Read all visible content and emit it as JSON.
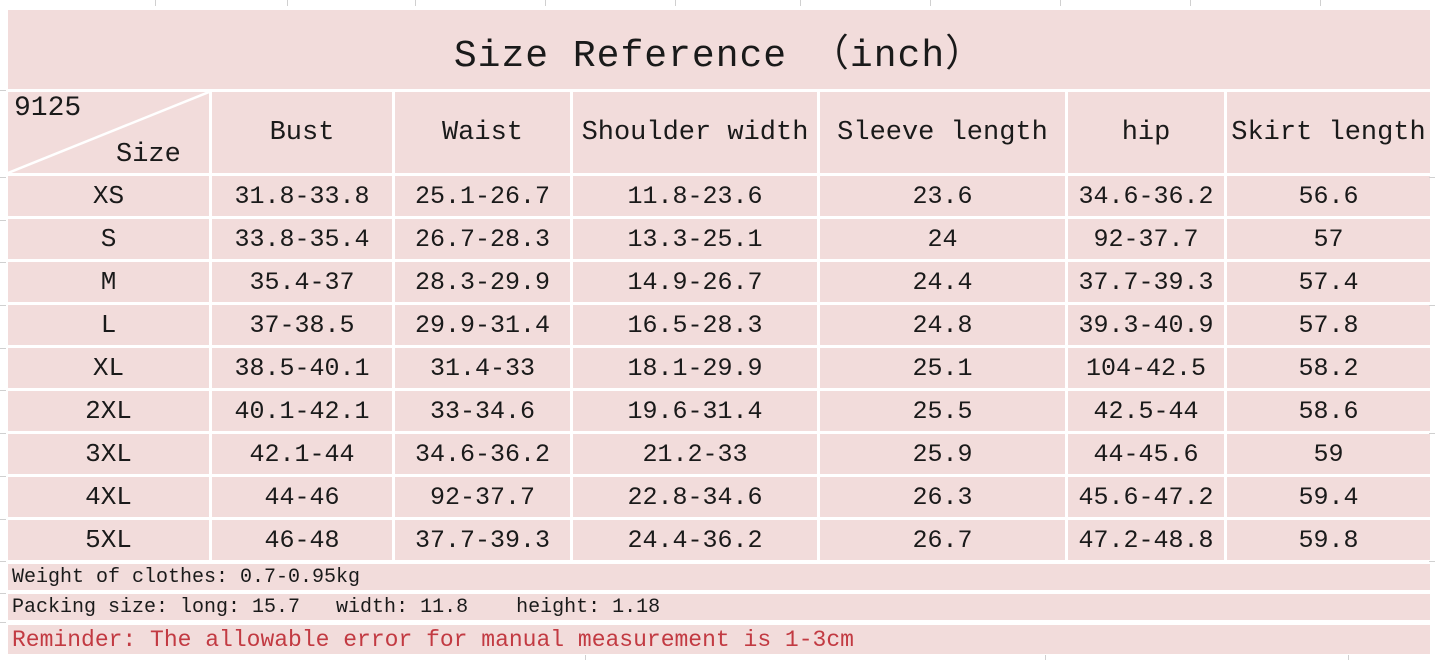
{
  "title": "Size Reference （inch）",
  "product_code": "9125",
  "size_label": "Size",
  "table": {
    "columns": [
      "Bust",
      "Waist",
      "Shoulder width",
      "Sleeve length",
      "hip",
      "Skirt length"
    ],
    "rows": [
      {
        "size": "XS",
        "values": [
          "31.8-33.8",
          "25.1-26.7",
          "11.8-23.6",
          "23.6",
          "34.6-36.2",
          "56.6"
        ]
      },
      {
        "size": "S",
        "values": [
          "33.8-35.4",
          "26.7-28.3",
          "13.3-25.1",
          "24",
          "92-37.7",
          "57"
        ]
      },
      {
        "size": "M",
        "values": [
          "35.4-37",
          "28.3-29.9",
          "14.9-26.7",
          "24.4",
          "37.7-39.3",
          "57.4"
        ]
      },
      {
        "size": "L",
        "values": [
          "37-38.5",
          "29.9-31.4",
          "16.5-28.3",
          "24.8",
          "39.3-40.9",
          "57.8"
        ]
      },
      {
        "size": "XL",
        "values": [
          "38.5-40.1",
          "31.4-33",
          "18.1-29.9",
          "25.1",
          "104-42.5",
          "58.2"
        ]
      },
      {
        "size": "2XL",
        "values": [
          "40.1-42.1",
          "33-34.6",
          "19.6-31.4",
          "25.5",
          "42.5-44",
          "58.6"
        ]
      },
      {
        "size": "3XL",
        "values": [
          "42.1-44",
          "34.6-36.2",
          "21.2-33",
          "25.9",
          "44-45.6",
          "59"
        ]
      },
      {
        "size": "4XL",
        "values": [
          "44-46",
          "92-37.7",
          "22.8-34.6",
          "26.3",
          "45.6-47.2",
          "59.4"
        ]
      },
      {
        "size": "5XL",
        "values": [
          "46-48",
          "37.7-39.3",
          "24.4-36.2",
          "26.7",
          "47.2-48.8",
          "59.8"
        ]
      }
    ]
  },
  "notes": {
    "weight": "Weight of clothes: 0.7-0.95kg",
    "packing": "Packing size: long: 15.7   width: 11.8    height: 1.18",
    "reminder": "Reminder: The allowable error for manual measurement is 1-3cm"
  },
  "colors": {
    "table_fill": "#f2dcdb",
    "grid_lines": "#ffffff",
    "text": "#1a1a1a",
    "reminder_text": "#c23a42"
  }
}
